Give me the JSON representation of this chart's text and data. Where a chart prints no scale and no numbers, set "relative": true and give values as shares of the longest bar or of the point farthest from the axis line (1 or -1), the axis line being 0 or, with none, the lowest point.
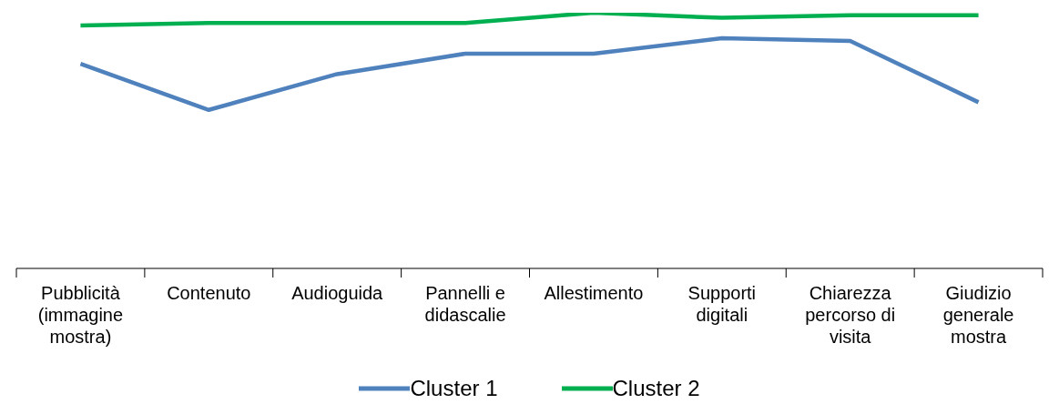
{
  "chart_data": {
    "type": "line",
    "relative": true,
    "categories": [
      "Pubblicità (immagine mostra)",
      "Contenuto",
      "Audioguida",
      "Pannelli e didascalie",
      "Allestimento",
      "Supporti digitali",
      "Chiarezza percorso di visita",
      "Giudizio generale mostra"
    ],
    "series": [
      {
        "name": "Cluster 1",
        "color": "#4f81bd",
        "values": [
          0.8,
          0.62,
          0.76,
          0.84,
          0.84,
          0.9,
          0.89,
          0.65
        ]
      },
      {
        "name": "Cluster 2",
        "color": "#00b050",
        "values": [
          0.95,
          0.96,
          0.96,
          0.96,
          1.0,
          0.98,
          0.99,
          0.99
        ]
      }
    ],
    "legend": "bottom",
    "marker": "none",
    "line_style": "solid",
    "grid": false
  }
}
